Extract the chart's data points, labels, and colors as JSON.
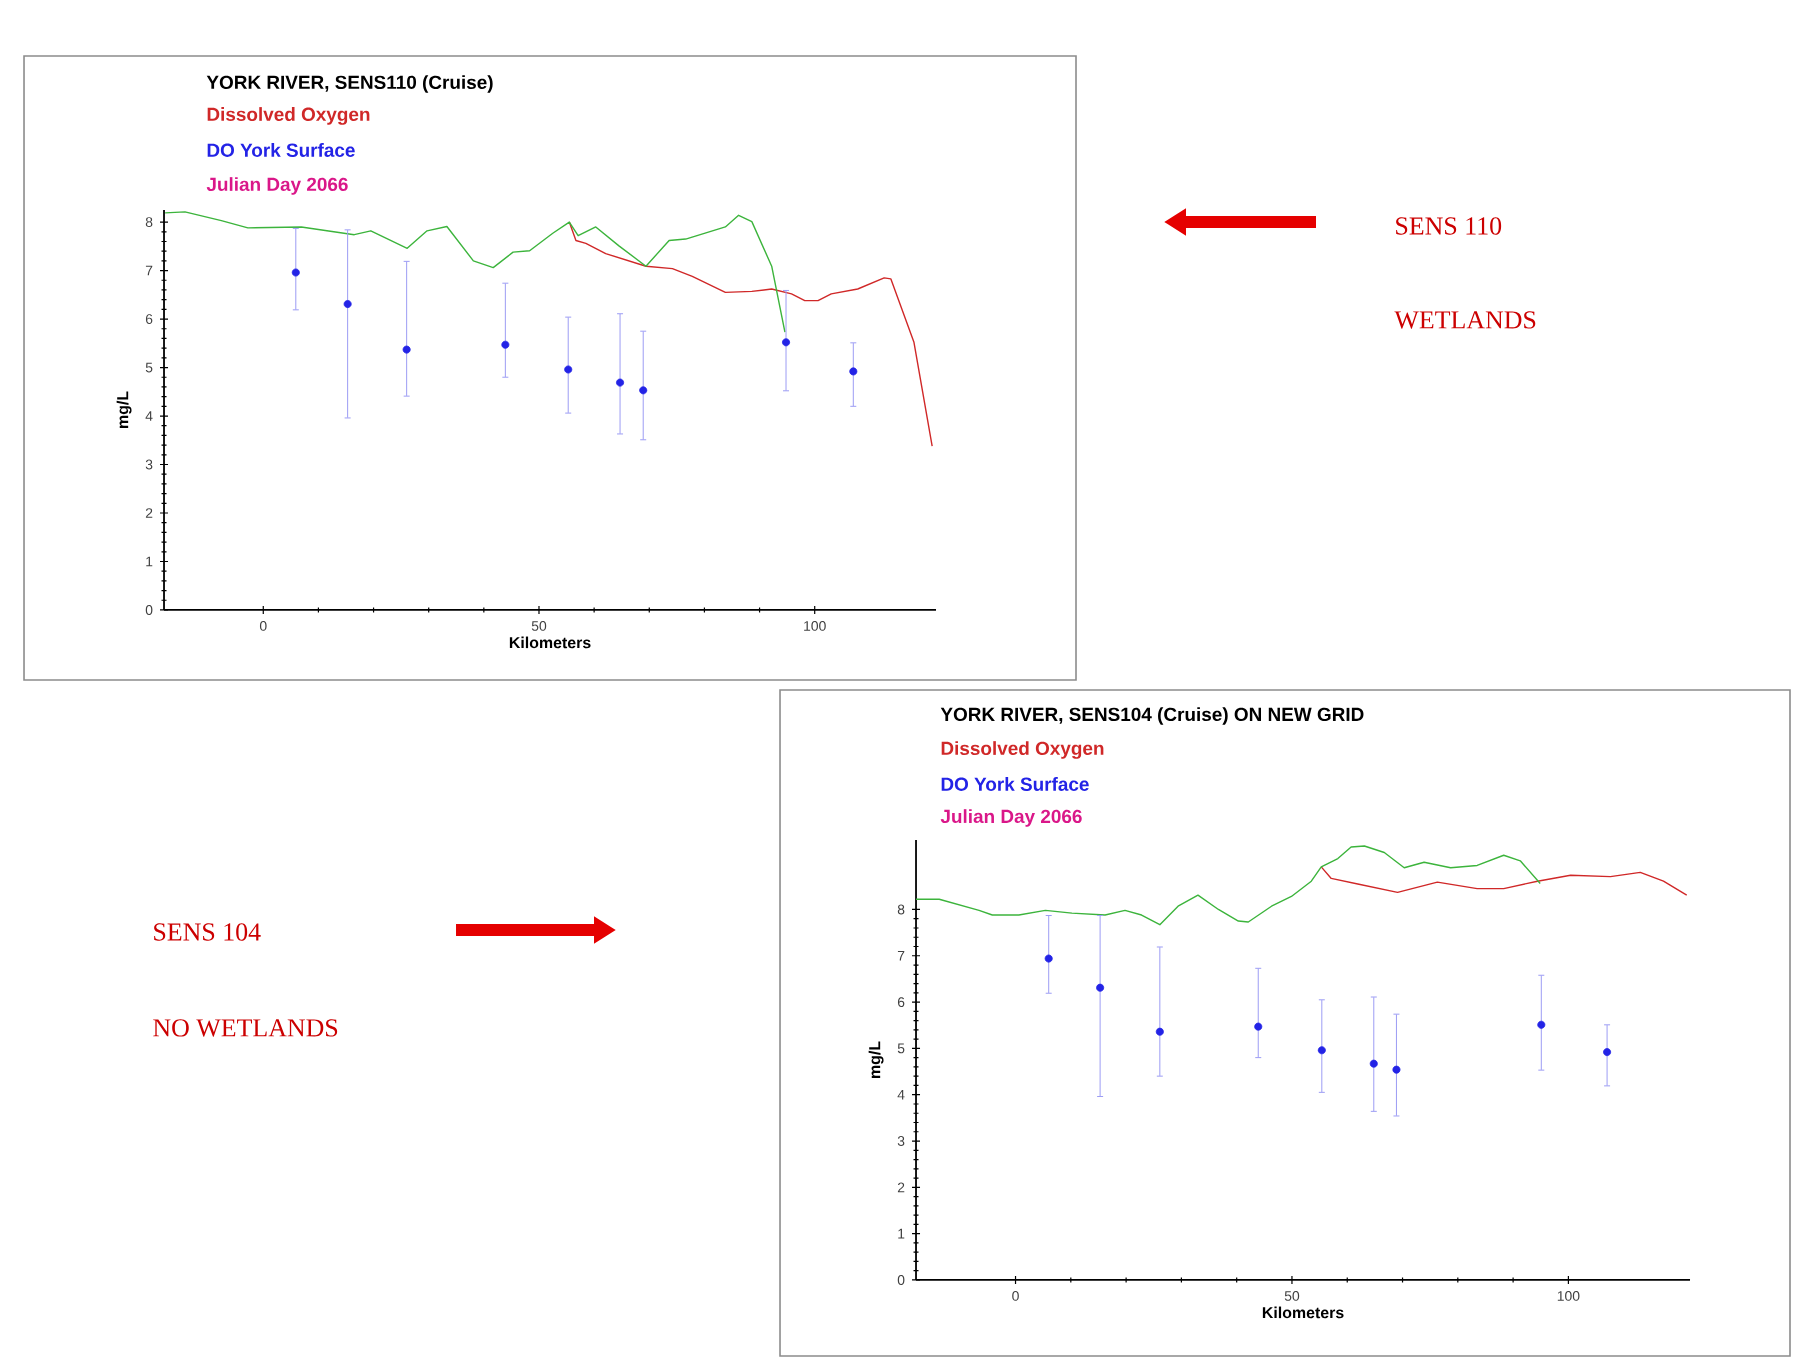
{
  "chart_data": [
    {
      "type": "line",
      "title": "YORK RIVER, SENS110 (Cruise)",
      "xlabel": "Kilometers",
      "ylabel": "mg/L",
      "xlim": [
        -18,
        122
      ],
      "ylim": [
        0,
        8.25
      ],
      "xticks": [
        0,
        50,
        100
      ],
      "yticks": [
        0,
        1,
        2,
        3,
        4,
        5,
        6,
        7,
        8
      ],
      "annotations": [
        "Julian Day  2066",
        "SENS 110",
        "WETLANDS"
      ],
      "series": [
        {
          "name": "Dissolved Oxygen",
          "type": "line",
          "color": "#d02828",
          "x": [
            55.5,
            56.7,
            58.5,
            62.1,
            69.4,
            74.2,
            77.8,
            83.8,
            88.6,
            92.2,
            95.8,
            98.2,
            100.6,
            103.0,
            107.8,
            112.6,
            113.8,
            118.0,
            121.3
          ],
          "values": [
            8.0,
            7.62,
            7.56,
            7.35,
            7.09,
            7.04,
            6.88,
            6.55,
            6.57,
            6.62,
            6.52,
            6.38,
            6.38,
            6.52,
            6.62,
            6.85,
            6.83,
            5.52,
            3.38
          ]
        },
        {
          "type": "line",
          "color": "#3cb43c",
          "x": [
            -17.8,
            -14.2,
            -7.6,
            -2.8,
            6.9,
            16.5,
            19.5,
            26.1,
            29.7,
            33.3,
            38.1,
            41.7,
            45.3,
            48.3,
            52.5,
            55.5,
            57.1,
            60.3,
            64.5,
            69.4,
            73.6,
            76.6,
            83.8,
            86.2,
            88.6,
            92.2,
            94.6
          ],
          "values": [
            8.19,
            8.21,
            8.03,
            7.88,
            7.9,
            7.74,
            7.82,
            7.46,
            7.82,
            7.91,
            7.2,
            7.06,
            7.38,
            7.41,
            7.77,
            8.0,
            7.72,
            7.9,
            7.51,
            7.09,
            7.62,
            7.65,
            7.9,
            8.14,
            8.01,
            7.09,
            5.73
          ]
        },
        {
          "name": "DO York Surface",
          "type": "scatter",
          "marker": "circle",
          "color": "#2323e6",
          "x": [
            5.9,
            15.3,
            26.0,
            43.9,
            55.3,
            64.7,
            68.9,
            94.8,
            107.0
          ],
          "values": [
            6.96,
            6.31,
            5.37,
            5.47,
            4.96,
            4.69,
            4.53,
            5.52,
            4.92
          ],
          "errors": [
            [
              6.18,
              7.88
            ],
            [
              3.95,
              7.85
            ],
            [
              4.4,
              7.2
            ],
            [
              4.79,
              6.75
            ],
            [
              4.05,
              6.05
            ],
            [
              3.62,
              6.12
            ],
            [
              3.5,
              5.76
            ],
            [
              4.51,
              6.6
            ],
            [
              4.19,
              5.52
            ]
          ]
        }
      ]
    },
    {
      "type": "line",
      "title": "YORK RIVER, SENS104 (Cruise) ON NEW GRID",
      "xlabel": "Kilometers",
      "ylabel": "mg/L",
      "xlim": [
        -18,
        122
      ],
      "ylim": [
        0,
        9.5
      ],
      "xticks": [
        0,
        50,
        100
      ],
      "yticks": [
        0,
        1,
        2,
        3,
        4,
        5,
        6,
        7,
        8
      ],
      "annotations": [
        "Julian Day  2066",
        "SENS 104",
        "NO WETLANDS"
      ],
      "series": [
        {
          "name": "Dissolved Oxygen",
          "type": "line",
          "color": "#d02828",
          "x": [
            55.3,
            57.1,
            61.9,
            69.1,
            76.3,
            83.5,
            88.3,
            94.4,
            100.4,
            107.6,
            113.0,
            117.2,
            121.4
          ],
          "values": [
            8.92,
            8.67,
            8.55,
            8.37,
            8.59,
            8.45,
            8.45,
            8.61,
            8.74,
            8.71,
            8.8,
            8.61,
            8.31
          ]
        },
        {
          "type": "line",
          "color": "#3cb43c",
          "x": [
            -18.0,
            -13.8,
            -6.6,
            -4.2,
            0.6,
            5.4,
            10.2,
            16.2,
            19.8,
            22.8,
            26.1,
            29.4,
            33.0,
            36.7,
            40.3,
            42.1,
            46.3,
            49.9,
            53.5,
            55.3,
            58.3,
            60.7,
            63.1,
            66.7,
            70.3,
            73.9,
            78.7,
            83.5,
            88.3,
            91.3,
            94.9
          ],
          "values": [
            8.22,
            8.22,
            7.98,
            7.88,
            7.88,
            7.98,
            7.92,
            7.88,
            7.98,
            7.88,
            7.67,
            8.07,
            8.31,
            8.0,
            7.75,
            7.73,
            8.07,
            8.28,
            8.61,
            8.92,
            9.1,
            9.35,
            9.37,
            9.23,
            8.9,
            9.02,
            8.9,
            8.95,
            9.17,
            9.05,
            8.56
          ]
        },
        {
          "name": "DO York Surface",
          "type": "scatter",
          "marker": "circle",
          "color": "#2323e6",
          "x": [
            6.0,
            15.3,
            26.1,
            43.9,
            55.4,
            64.8,
            68.9,
            95.1,
            107.0
          ],
          "values": [
            6.94,
            6.31,
            5.36,
            5.47,
            4.96,
            4.67,
            4.54,
            5.51,
            4.92
          ],
          "errors": [
            [
              6.18,
              7.88
            ],
            [
              3.95,
              7.88
            ],
            [
              4.39,
              7.2
            ],
            [
              4.79,
              6.74
            ],
            [
              4.04,
              6.06
            ],
            [
              3.63,
              6.12
            ],
            [
              3.53,
              5.75
            ],
            [
              4.52,
              6.59
            ],
            [
              4.18,
              5.52
            ]
          ]
        }
      ]
    }
  ]
}
